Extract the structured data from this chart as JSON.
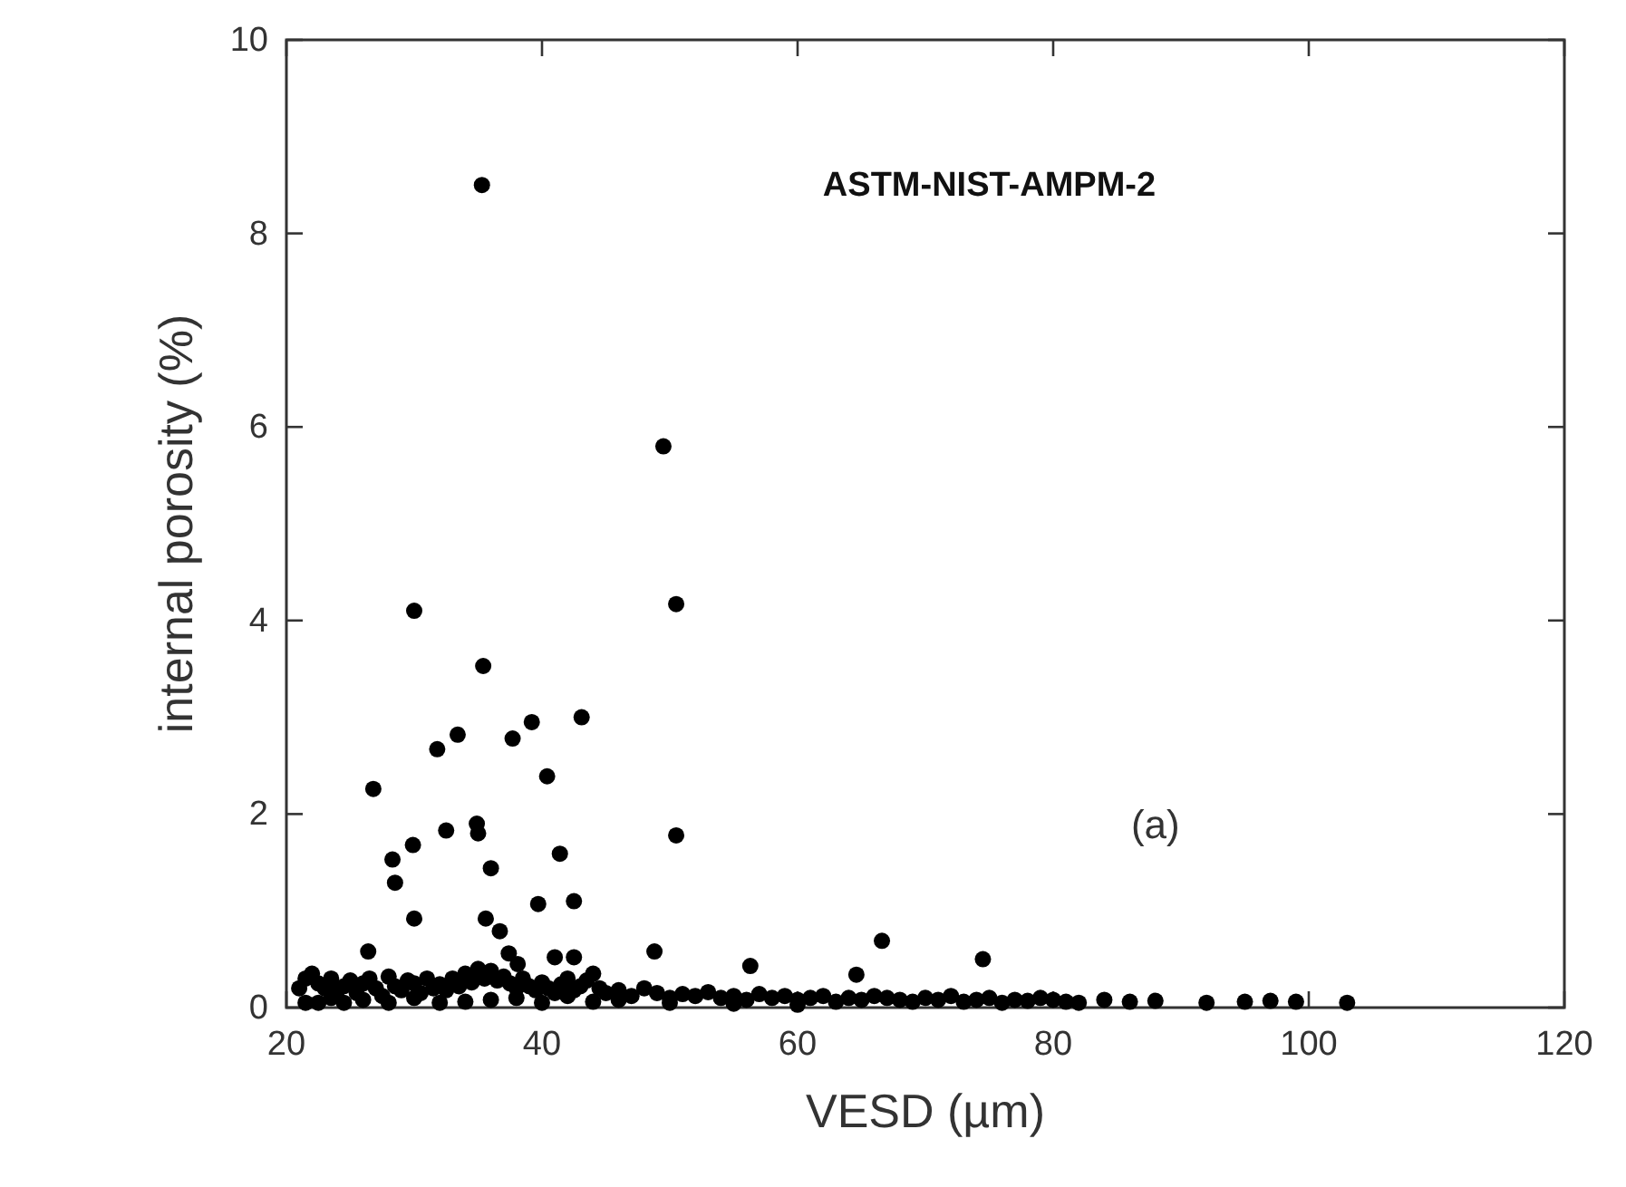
{
  "chart_data": {
    "type": "scatter",
    "xlabel": "VESD (µm)",
    "ylabel": "internal porosity (%)",
    "annotations": [
      "ASTM-NIST-AMPM-2",
      "(a)"
    ],
    "xlim": [
      20,
      120
    ],
    "ylim": [
      0,
      10
    ],
    "xticks": [
      20,
      40,
      60,
      80,
      100,
      120
    ],
    "yticks": [
      0,
      2,
      4,
      6,
      8,
      10
    ],
    "grid": false,
    "marker": "circle",
    "series": [
      {
        "color": "#000000",
        "x": [
          35.3,
          49.5,
          50.5,
          30,
          35.4,
          31.8,
          33.4,
          43.1,
          37.7,
          39.2,
          40.4,
          26.8,
          34.9,
          35,
          29.9,
          32.5,
          41.4,
          50.5,
          28.3,
          28.5,
          36,
          39.7,
          42.5,
          30,
          35.6,
          36.7,
          37.4,
          38.1,
          26.4,
          41,
          42.5,
          48.8,
          56.3,
          66.6,
          74.5,
          64.6,
          21,
          21.5,
          22,
          22.5,
          23,
          23.5,
          24,
          24.5,
          25,
          25.5,
          26,
          26.5,
          27,
          27.5,
          28,
          28.5,
          29,
          29.5,
          30,
          30.5,
          31,
          31.5,
          32,
          32.5,
          33,
          33.5,
          34,
          34.5,
          35,
          35.5,
          36,
          36.5,
          37,
          37.5,
          38,
          38.5,
          39,
          39.5,
          40,
          40.5,
          41,
          41.5,
          42,
          42.5,
          43,
          43.5,
          44,
          44.5,
          45,
          46,
          47,
          48,
          49,
          50,
          51,
          52,
          53,
          54,
          55,
          56,
          57,
          58,
          59,
          60,
          61,
          62,
          63,
          64,
          65,
          66,
          67,
          68,
          69,
          70,
          71,
          72,
          73,
          74,
          75,
          76,
          77,
          78,
          79,
          80,
          81,
          82,
          84,
          86,
          88,
          92,
          95,
          97,
          99,
          103,
          21.5,
          22.5,
          23.5,
          24.5,
          26,
          28,
          30,
          32,
          34,
          36,
          38,
          40,
          42,
          44,
          46,
          50,
          55,
          60
        ],
        "values": [
          8.5,
          5.8,
          4.17,
          4.1,
          3.53,
          2.67,
          2.82,
          3.0,
          2.78,
          2.95,
          2.39,
          2.26,
          1.9,
          1.8,
          1.68,
          1.83,
          1.59,
          1.78,
          1.53,
          1.29,
          1.44,
          1.07,
          1.1,
          0.92,
          0.92,
          0.79,
          0.56,
          0.45,
          0.58,
          0.52,
          0.52,
          0.58,
          0.43,
          0.69,
          0.5,
          0.34,
          0.2,
          0.3,
          0.35,
          0.25,
          0.2,
          0.3,
          0.18,
          0.22,
          0.28,
          0.15,
          0.25,
          0.3,
          0.2,
          0.12,
          0.32,
          0.22,
          0.18,
          0.28,
          0.25,
          0.15,
          0.3,
          0.2,
          0.24,
          0.18,
          0.3,
          0.22,
          0.35,
          0.26,
          0.4,
          0.3,
          0.38,
          0.28,
          0.32,
          0.25,
          0.2,
          0.3,
          0.22,
          0.18,
          0.26,
          0.2,
          0.15,
          0.24,
          0.3,
          0.18,
          0.22,
          0.28,
          0.35,
          0.2,
          0.15,
          0.18,
          0.12,
          0.2,
          0.15,
          0.1,
          0.14,
          0.12,
          0.16,
          0.1,
          0.12,
          0.08,
          0.14,
          0.1,
          0.12,
          0.08,
          0.1,
          0.12,
          0.06,
          0.1,
          0.08,
          0.12,
          0.1,
          0.08,
          0.06,
          0.1,
          0.08,
          0.12,
          0.06,
          0.08,
          0.1,
          0.05,
          0.08,
          0.07,
          0.1,
          0.08,
          0.06,
          0.05,
          0.08,
          0.06,
          0.07,
          0.05,
          0.06,
          0.07,
          0.06,
          0.05,
          0.05,
          0.05,
          0.1,
          0.05,
          0.08,
          0.05,
          0.1,
          0.05,
          0.06,
          0.08,
          0.1,
          0.05,
          0.12,
          0.06,
          0.08,
          0.05,
          0.04,
          0.03
        ]
      }
    ]
  }
}
